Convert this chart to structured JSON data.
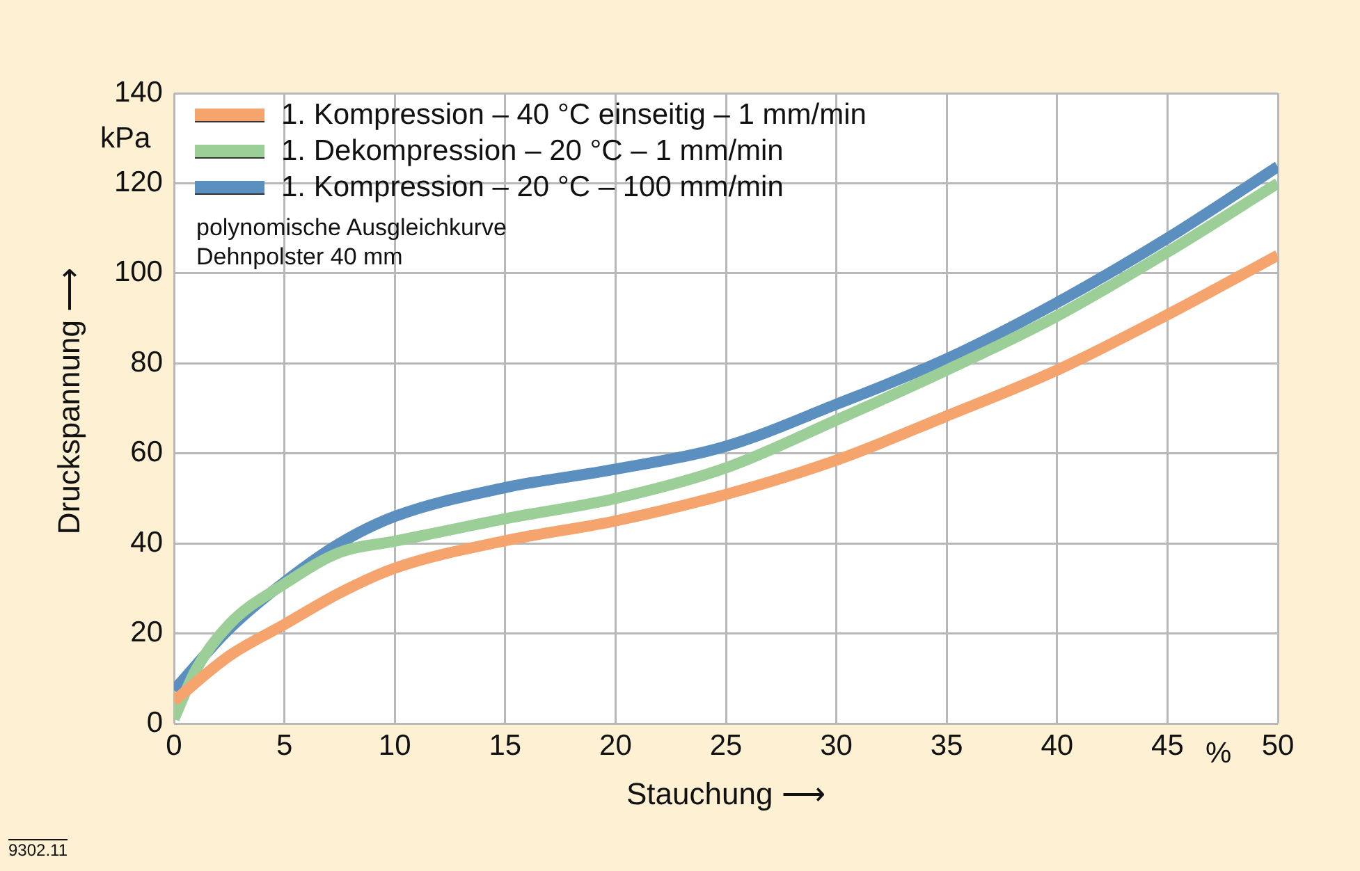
{
  "chart_data": {
    "type": "line",
    "xlabel": "Stauchung ⟶",
    "ylabel": "Druckspannung ⟶",
    "xlim": [
      0,
      50
    ],
    "xticks": [
      0,
      5,
      10,
      15,
      20,
      25,
      30,
      35,
      40,
      45,
      50
    ],
    "ylim": [
      0,
      140
    ],
    "yticks": [
      0,
      20,
      40,
      60,
      80,
      100,
      120,
      140
    ],
    "grid": true,
    "legend": "top left",
    "marker": "none",
    "line_style": "solid",
    "annotations": [
      "polynomische Ausgleichkurve",
      "Dehnpolster 40 mm",
      "kPa",
      "%",
      "9302.11"
    ],
    "series": [
      {
        "name": "1. Kompression – 40 °C einseitig – 1 mm/min",
        "color": "#f4a46c",
        "x": [
          0,
          2.5,
          5,
          7.5,
          10,
          15,
          20,
          25,
          30,
          35,
          40,
          45,
          50
        ],
        "values": [
          5,
          15,
          22,
          29,
          34.5,
          40.6,
          45,
          50.9,
          58.5,
          68.3,
          78.5,
          90.8,
          104
        ]
      },
      {
        "name": "1. Dekompression – 20 °C – 1 mm/min",
        "color": "#9ccf98",
        "x": [
          0,
          1,
          2.5,
          5,
          7.5,
          10,
          12.5,
          15,
          20,
          25,
          30,
          35,
          40,
          45,
          50
        ],
        "values": [
          1,
          12,
          22,
          31,
          38,
          40.5,
          43,
          45.5,
          50,
          56.8,
          67.4,
          78.5,
          90.5,
          104.7,
          120
        ]
      },
      {
        "name": "1. Kompression – 20 °C – 100 mm/min",
        "color": "#5b8fbf",
        "x": [
          0,
          2.5,
          5,
          7.5,
          10,
          15,
          20,
          25,
          30,
          35,
          40,
          45,
          50
        ],
        "values": [
          7.4,
          21,
          31.4,
          40,
          46,
          52.4,
          56.5,
          61.6,
          70.9,
          81,
          93.5,
          107.8,
          123.7
        ]
      }
    ]
  }
}
